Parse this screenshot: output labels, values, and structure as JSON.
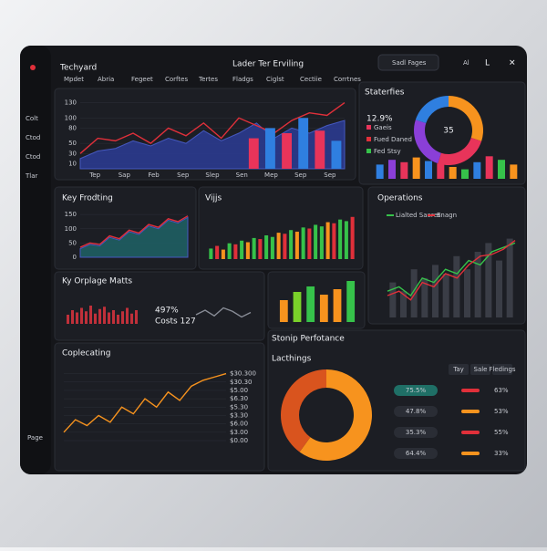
{
  "header": {
    "title": "Techyard",
    "center_title": "Lader Ter Erviling",
    "search": "Sadl Fages",
    "user": "Al",
    "tabs": [
      "Mpdet",
      "Abria",
      "Fegeet",
      "Corftes",
      "Tertes",
      "Fladgs",
      "Ciglst",
      "Cectiie",
      "Corrtnes"
    ]
  },
  "sidebar": {
    "items": [
      "Colt",
      "Ctod",
      "Ctod",
      "Tlar"
    ],
    "footer": "Page"
  },
  "panels": {
    "trend": {
      "chart": {
        "ylim": [
          0,
          140
        ],
        "yticks": [
          10,
          30,
          50,
          80,
          100,
          130
        ],
        "x_labels": [
          "Tep",
          "Sap",
          "Feb",
          "Sep",
          "Slep",
          "Sen",
          "Mep",
          "Sep",
          "Sep"
        ],
        "series": [
          {
            "kind": "area",
            "color": "#2b3a8f",
            "values": [
              20,
              35,
              40,
              55,
              45,
              60,
              50,
              75,
              55,
              70,
              90,
              60,
              80,
              70,
              85,
              95
            ]
          },
          {
            "kind": "line",
            "color": "#e0303a",
            "values": [
              30,
              60,
              55,
              70,
              50,
              80,
              65,
              90,
              60,
              100,
              85,
              70,
              95,
              110,
              105,
              130
            ]
          },
          {
            "kind": "bar",
            "color": "#e8345a",
            "values": [
              null,
              null,
              null,
              null,
              null,
              null,
              null,
              null,
              null,
              null,
              60,
              null,
              70,
              null,
              75,
              null
            ]
          },
          {
            "kind": "bar",
            "color": "#2f7fe0",
            "values": [
              null,
              null,
              null,
              null,
              null,
              null,
              null,
              null,
              null,
              null,
              null,
              80,
              null,
              100,
              null,
              55
            ]
          }
        ]
      }
    },
    "stats": {
      "title": "Staterfies",
      "value": "12.9%",
      "legend": [
        "Gaeis",
        "Fued Daned",
        "Fed Stsy"
      ],
      "legend_colors": [
        "#e8345a",
        "#e0303a",
        "#36c24a"
      ],
      "donut": {
        "center": "35",
        "values": [
          30,
          25,
          25,
          20
        ],
        "colors": [
          "#f7931e",
          "#e8345a",
          "#8a3fd8",
          "#2f7fe0"
        ]
      },
      "chart": {
        "ylim": [
          0,
          100
        ],
        "series": [
          {
            "kind": "bar",
            "values": [
              60,
              80,
              70,
              90,
              75,
              65,
              50,
              40,
              70,
              95,
              80,
              60
            ],
            "colors": [
              "#2f7fe0",
              "#8a3fd8",
              "#e8345a",
              "#f7931e",
              "#2f7fe0",
              "#e8345a",
              "#f7931e",
              "#36c24a",
              "#2f7fe0",
              "#e8345a",
              "#36c24a",
              "#f7931e"
            ]
          }
        ]
      }
    },
    "key_frodting": {
      "title": "Key Frodting",
      "chart": {
        "ylim": [
          0,
          160
        ],
        "yticks": [
          0,
          50,
          100,
          150
        ],
        "series": [
          {
            "kind": "area",
            "color": "#1f5f63",
            "values": [
              30,
              45,
              40,
              70,
              60,
              90,
              80,
              110,
              100,
              130,
              120,
              140
            ]
          },
          {
            "kind": "line",
            "color": "#e0303a",
            "values": [
              35,
              50,
              45,
              75,
              65,
              95,
              85,
              115,
              105,
              135,
              125,
              145
            ]
          }
        ]
      }
    },
    "vijjs": {
      "title": "Vijjs",
      "chart": {
        "ylim": [
          0,
          90
        ],
        "series": [
          {
            "kind": "bar",
            "values": [
              20,
              25,
              18,
              30,
              28,
              35,
              32,
              40,
              38,
              45,
              42,
              50,
              48,
              55,
              52,
              60,
              58,
              65,
              62,
              70,
              68,
              75,
              72,
              80
            ],
            "colors": [
              "#36c24a",
              "#e0303a",
              "#f7931e",
              "#36c24a",
              "#e0303a",
              "#36c24a",
              "#f7931e",
              "#36c24a",
              "#e0303a",
              "#36c24a",
              "#36c24a",
              "#f7931e",
              "#e0303a",
              "#36c24a",
              "#f7931e",
              "#36c24a",
              "#e0303a",
              "#36c24a",
              "#36c24a",
              "#f7931e",
              "#e0303a",
              "#36c24a",
              "#36c24a",
              "#e0303a"
            ]
          }
        ]
      }
    },
    "operations": {
      "title": "Operations",
      "legend": [
        "Lialted Saeres",
        "Enagn"
      ],
      "chart": {
        "ylim": [
          0,
          100
        ],
        "series": [
          {
            "kind": "bar",
            "color": "#3a3d46",
            "values": [
              40,
              30,
              55,
              45,
              60,
              50,
              70,
              55,
              75,
              85,
              65,
              90
            ]
          },
          {
            "kind": "line",
            "color": "#36c24a",
            "values": [
              30,
              35,
              25,
              45,
              40,
              55,
              50,
              65,
              60,
              75,
              80,
              85
            ]
          },
          {
            "kind": "line",
            "color": "#e0303a",
            "values": [
              25,
              30,
              20,
              40,
              35,
              50,
              45,
              60,
              70,
              72,
              78,
              88
            ]
          }
        ]
      }
    },
    "orplage": {
      "title": "Ky Orplage Matts",
      "value": "497%",
      "caption": "Costs 127",
      "chart": {
        "ylim": [
          0,
          100
        ],
        "series": [
          {
            "kind": "bar",
            "color": "#c0303a",
            "values": [
              40,
              60,
              50,
              70,
              55,
              80,
              45,
              65,
              75,
              50,
              60,
              40,
              55,
              70,
              45,
              60
            ]
          }
        ]
      },
      "mini": {
        "ylim": [
          0,
          100
        ],
        "series": [
          {
            "kind": "line",
            "color": "#888c96",
            "values": [
              40,
              60,
              35,
              70,
              55,
              30,
              50
            ]
          }
        ]
      }
    },
    "stonip": {
      "title": "Stonip Perfotance",
      "chart": {
        "ylim": [
          0,
          80
        ],
        "series": [
          {
            "kind": "bar",
            "values": [
              40,
              55,
              65,
              50,
              60,
              75
            ],
            "colors": [
              "#f7931e",
              "#7ad12a",
              "#36c24a",
              "#f7931e",
              "#f7931e",
              "#36c24a"
            ]
          }
        ]
      }
    },
    "coplecating": {
      "title": "Coplecating",
      "chart": {
        "ylim": [
          0,
          8.5
        ],
        "ytick_side": "right",
        "yticks": [
          {
            "value": 0,
            "label": "$0.00"
          },
          {
            "value": 1,
            "label": "$3.00"
          },
          {
            "value": 2,
            "label": "$6.00"
          },
          {
            "value": 3,
            "label": "$3.30"
          },
          {
            "value": 4,
            "label": "$5.30"
          },
          {
            "value": 5,
            "label": "$6.30"
          },
          {
            "value": 6,
            "label": "$5.00"
          },
          {
            "value": 7,
            "label": "$30.30"
          },
          {
            "value": 8,
            "label": "$30.300"
          }
        ],
        "series": [
          {
            "kind": "line",
            "color": "#f7931e",
            "values": [
              1,
              2.5,
              1.8,
              3,
              2.2,
              4,
              3.2,
              5,
              4,
              5.8,
              4.8,
              6.5,
              7.2,
              7.6,
              8
            ]
          }
        ]
      }
    },
    "lacthings": {
      "title": "Lacthings",
      "buttons": [
        "Tay",
        "Sale",
        "Fledings"
      ],
      "donut": {
        "values": [
          60,
          40
        ],
        "colors": [
          "#f7931e",
          "#d9541e"
        ]
      },
      "rows": [
        {
          "left": "75.5%",
          "right": "63%"
        },
        {
          "left": "47.8%",
          "right": "53%"
        },
        {
          "left": "35.3%",
          "right": "55%"
        },
        {
          "left": "64.4%",
          "right": "33%"
        }
      ]
    }
  }
}
